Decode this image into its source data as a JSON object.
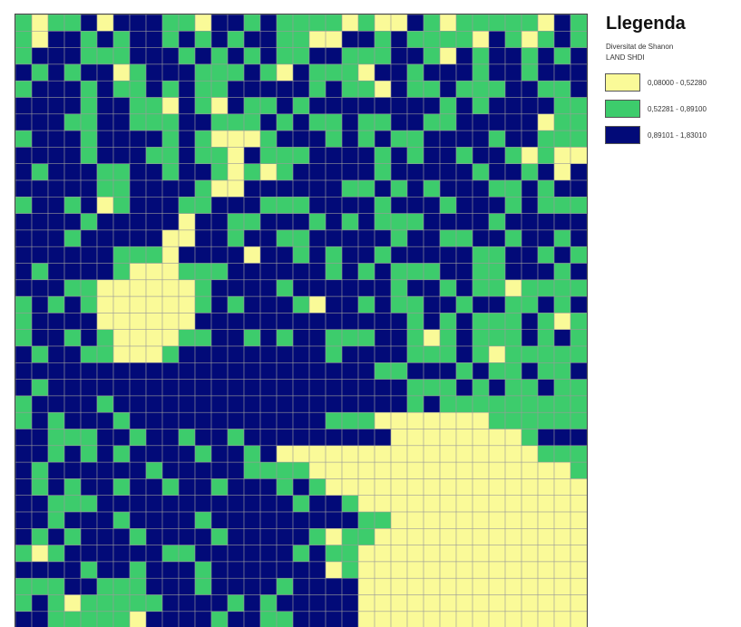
{
  "legend": {
    "title": "Llegenda",
    "subtitle": "Diversitat de Shanon",
    "layer_name": "LAND SHDI",
    "classes": [
      {
        "label": "0,08000 - 0,52280",
        "color": "#fafa98",
        "name": "class-low"
      },
      {
        "label": "0,52281 - 0,89100",
        "color": "#3dcc6c",
        "name": "class-mid"
      },
      {
        "label": "0,89101 - 1,83010",
        "color": "#020a78",
        "name": "class-high"
      }
    ]
  },
  "grid": {
    "cols": 35,
    "rows": 37,
    "line_color": "#9a9a9a",
    "legend_meaning": "0 = first class, 1 = second class, 2 = third class",
    "cells": [
      "10112022211022121111010021011111021",
      "10221212212121221100221211110210121",
      "12221112221212121122111221021221212",
      "21212201222111210211102212221221222",
      "12221211212112222212110211211122112",
      "22221221102102112122222222121222211",
      "22211221112211121211211221122222011",
      "12221222212100012221212112222122111",
      "22221222112110211122221212212210100",
      "21222112212210101222221222221221202",
      "22222112222100222222112121222112122",
      "12212012221122211122221222122212111",
      "22221222220221122212121112222122222",
      "22212222200221221122222122112212212",
      "22222211102222022121221222221122121",
      "21222210001112222221212111221122212",
      "22211000000122221222222122121101111",
      "12121000000121222102212112212211212",
      "12222000000222222222222212121112101",
      "12212100001122121221112210121112121",
      "21221100012222222221222211121011111",
      "22222222222222222222221122212112112",
      "21222222222222222222222211121211211",
      "12222122222222222222222212111111111",
      "12122212222222222221110000000111111",
      "22111221221221222222222000000001222",
      "22121212222122120000000000000000111",
      "21222222122222111100000000000000001",
      "21212212212212221210000000000000000",
      "22111222222222222122100000000000000",
      "22122212222122222222211000000000000",
      "21212221222212222210110000000000000",
      "10122222211222222121100000000000000",
      "22221221222122222220100000000000000",
      "11122111222122221222200000000000000",
      "12101111122221212222200000000000000",
      "22111110222212211222200000000000000"
    ]
  }
}
